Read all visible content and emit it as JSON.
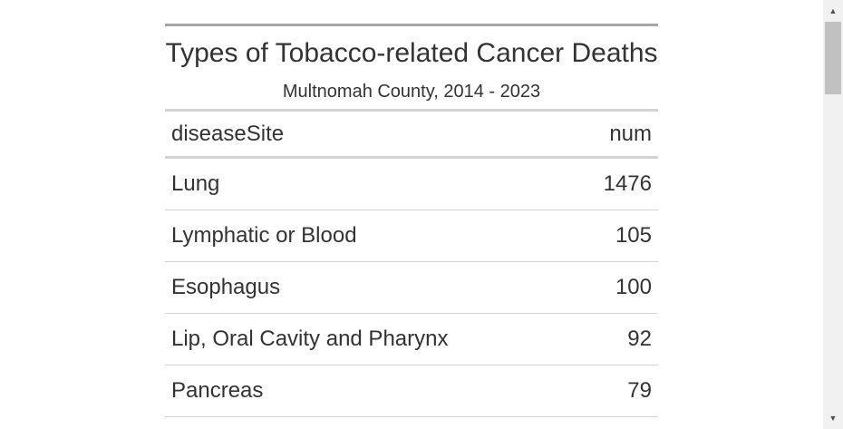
{
  "table": {
    "title": "Types of Tobacco-related Cancer Deaths",
    "subtitle": "Multnomah County, 2014 - 2023",
    "columns": [
      "diseaseSite",
      "num"
    ],
    "rows": [
      {
        "site": "Lung",
        "num": "1476"
      },
      {
        "site": "Lymphatic or Blood",
        "num": "105"
      },
      {
        "site": "Esophagus",
        "num": "100"
      },
      {
        "site": "Lip, Oral Cavity and Pharynx",
        "num": "92"
      },
      {
        "site": "Pancreas",
        "num": "79"
      }
    ]
  },
  "scrollbar": {
    "up_icon": "triangle-up-icon",
    "down_icon": "triangle-down-icon",
    "up_glyph": "▲",
    "down_glyph": "▼"
  }
}
